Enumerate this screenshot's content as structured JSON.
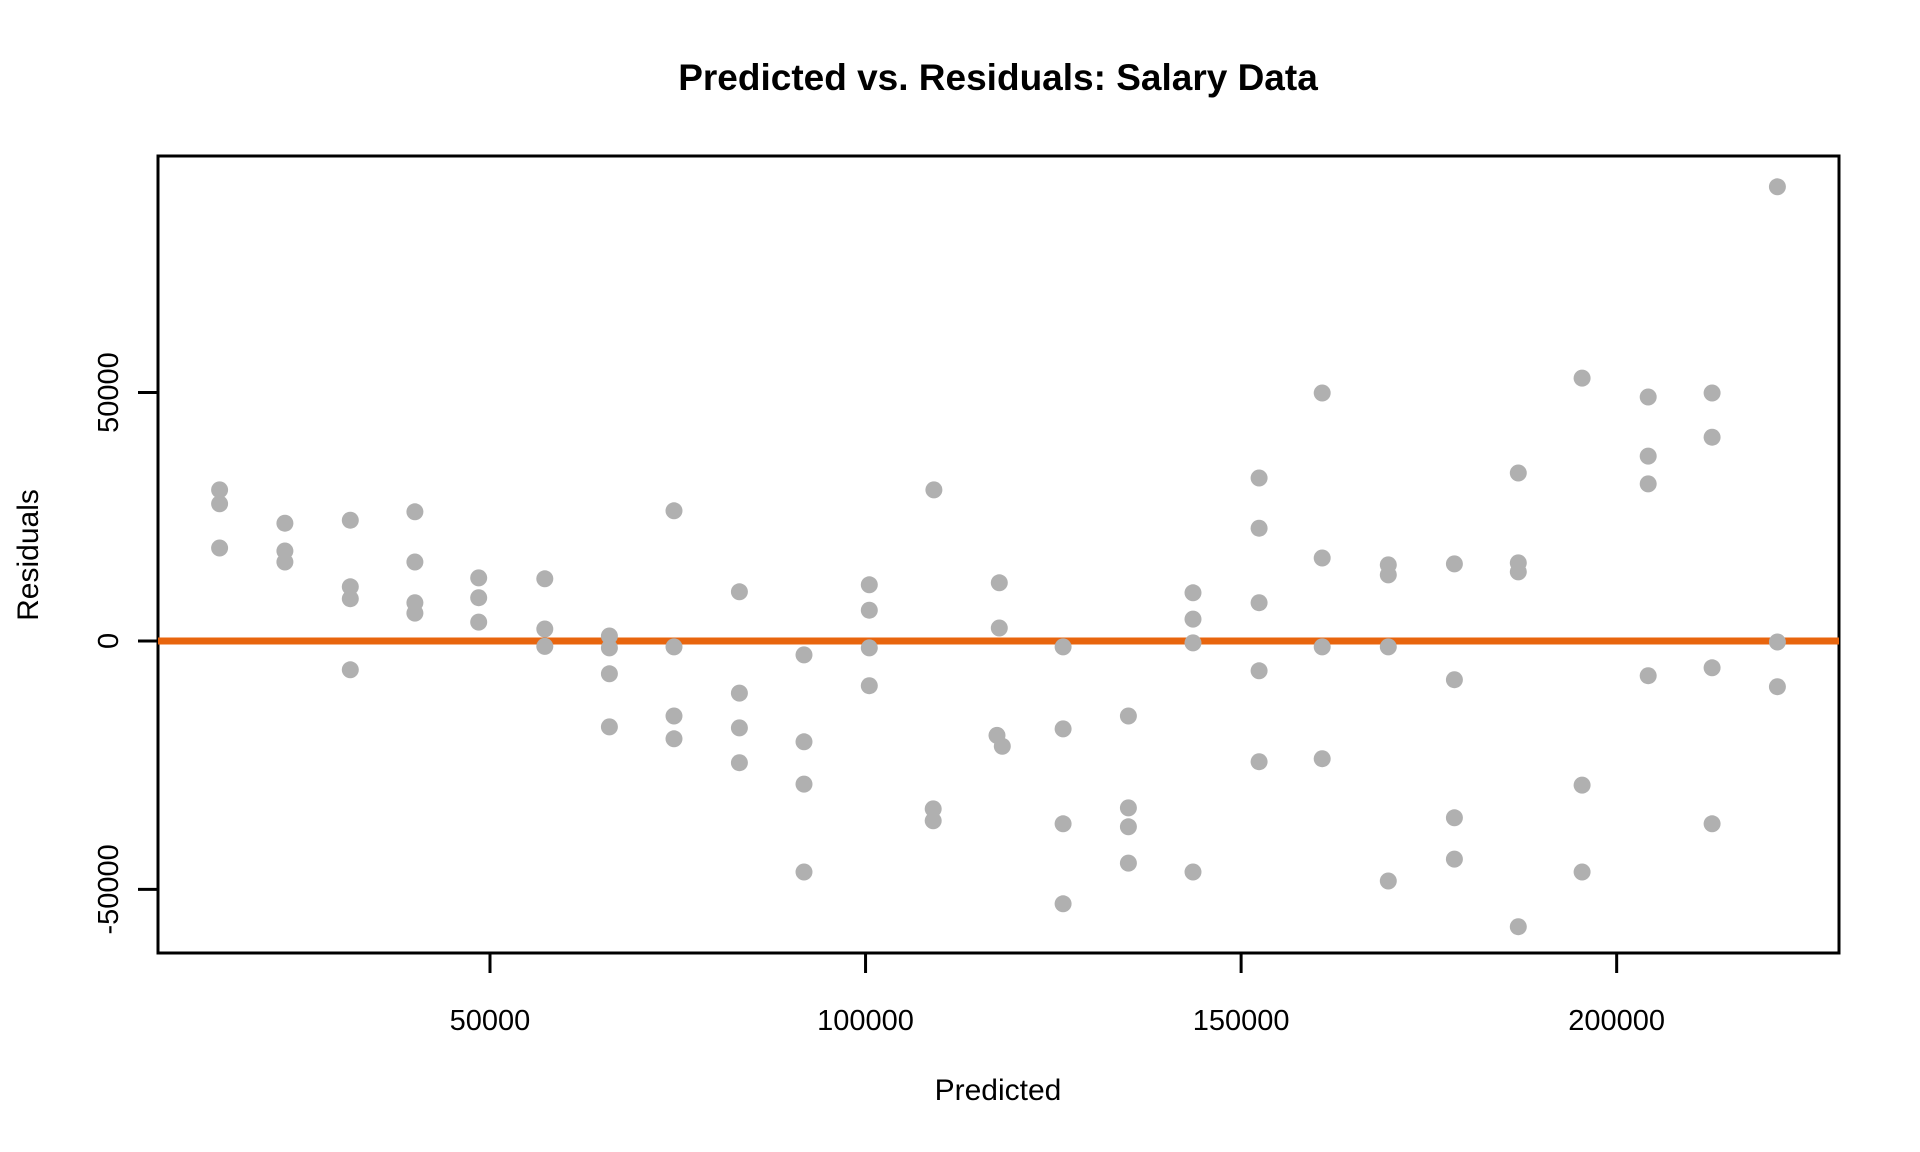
{
  "title": "Predicted vs. Residuals: Salary Data",
  "chart_data": {
    "type": "scatter",
    "title": "Predicted vs. Residuals: Salary Data",
    "xlabel": "Predicted",
    "ylabel": "Residuals",
    "xlim": [
      5800,
      229600
    ],
    "ylim": [
      -62800,
      97600
    ],
    "x_ticks": [
      50000,
      100000,
      150000,
      200000
    ],
    "y_ticks": [
      -50000,
      0,
      50000
    ],
    "grid": false,
    "legend": "none",
    "point_color": "#b0b0b0",
    "axis_color": "#000000",
    "reference_line": {
      "y": 0,
      "color": "#e8650e",
      "width": 7
    },
    "points": [
      [
        14000,
        30400
      ],
      [
        14000,
        27600
      ],
      [
        14000,
        18700
      ],
      [
        22700,
        23700
      ],
      [
        22700,
        18100
      ],
      [
        22700,
        15900
      ],
      [
        31400,
        24300
      ],
      [
        31400,
        10900
      ],
      [
        31400,
        8500
      ],
      [
        31400,
        -5800
      ],
      [
        40000,
        26000
      ],
      [
        40000,
        15900
      ],
      [
        40000,
        7700
      ],
      [
        40000,
        5600
      ],
      [
        48500,
        12700
      ],
      [
        48500,
        8700
      ],
      [
        48500,
        3800
      ],
      [
        57300,
        12500
      ],
      [
        57300,
        2400
      ],
      [
        57300,
        -1100
      ],
      [
        65900,
        1000
      ],
      [
        65900,
        -1400
      ],
      [
        65900,
        -6600
      ],
      [
        65900,
        -17300
      ],
      [
        74500,
        26200
      ],
      [
        74500,
        -1200
      ],
      [
        74500,
        -15100
      ],
      [
        74500,
        -19700
      ],
      [
        83200,
        9900
      ],
      [
        83200,
        -10500
      ],
      [
        83200,
        -17500
      ],
      [
        83200,
        -24500
      ],
      [
        91800,
        -2800
      ],
      [
        91800,
        -20300
      ],
      [
        91800,
        -28800
      ],
      [
        91800,
        -46500
      ],
      [
        100500,
        11300
      ],
      [
        100500,
        6200
      ],
      [
        100500,
        -1400
      ],
      [
        100500,
        -9000
      ],
      [
        109100,
        30400
      ],
      [
        109000,
        -33800
      ],
      [
        109000,
        -36200
      ],
      [
        117800,
        11700
      ],
      [
        117800,
        2600
      ],
      [
        117500,
        -19000
      ],
      [
        118200,
        -21200
      ],
      [
        126300,
        -1200
      ],
      [
        126300,
        -17700
      ],
      [
        126300,
        -36800
      ],
      [
        126300,
        -52900
      ],
      [
        135000,
        -15100
      ],
      [
        135000,
        -33600
      ],
      [
        135000,
        -37400
      ],
      [
        135000,
        -44700
      ],
      [
        143600,
        9700
      ],
      [
        143600,
        4400
      ],
      [
        143600,
        -400
      ],
      [
        143600,
        -46500
      ],
      [
        152400,
        32800
      ],
      [
        152400,
        22700
      ],
      [
        152400,
        7700
      ],
      [
        152400,
        -6000
      ],
      [
        152400,
        -24300
      ],
      [
        160800,
        49900
      ],
      [
        160800,
        16700
      ],
      [
        160800,
        -1200
      ],
      [
        160800,
        -23700
      ],
      [
        169600,
        15300
      ],
      [
        169600,
        13300
      ],
      [
        169600,
        -1200
      ],
      [
        169600,
        -48300
      ],
      [
        178400,
        15500
      ],
      [
        178400,
        -7800
      ],
      [
        178400,
        -35600
      ],
      [
        178400,
        -43900
      ],
      [
        186900,
        33800
      ],
      [
        186900,
        15700
      ],
      [
        186900,
        13900
      ],
      [
        186900,
        -57500
      ],
      [
        195400,
        52900
      ],
      [
        195400,
        -29000
      ],
      [
        195400,
        -46500
      ],
      [
        204200,
        49100
      ],
      [
        204200,
        37200
      ],
      [
        204200,
        31600
      ],
      [
        204200,
        -7000
      ],
      [
        212700,
        49900
      ],
      [
        212700,
        41000
      ],
      [
        212700,
        -5400
      ],
      [
        212700,
        -36800
      ],
      [
        221400,
        91400
      ],
      [
        221400,
        -200
      ],
      [
        221400,
        -9200
      ]
    ]
  }
}
